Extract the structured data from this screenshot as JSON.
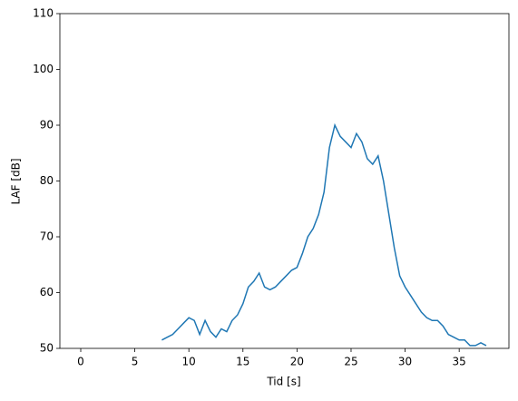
{
  "chart_data": {
    "type": "line",
    "x_label": "Tid [s]",
    "y_label": "LAF [dB]",
    "x": [
      7.5,
      8,
      8.5,
      9,
      9.5,
      10,
      10.5,
      11,
      11.5,
      12,
      12.5,
      13,
      13.5,
      14,
      14.5,
      15,
      15.5,
      16,
      16.5,
      17,
      17.5,
      18,
      18.5,
      19,
      19.5,
      20,
      20.5,
      21,
      21.5,
      22,
      22.5,
      23,
      23.5,
      24,
      24.5,
      25,
      25.5,
      26,
      26.5,
      27,
      27.5,
      28,
      28.5,
      29,
      29.5,
      30,
      30.5,
      31,
      31.5,
      32,
      32.5,
      33,
      33.5,
      34,
      34.5,
      35,
      35.5,
      36,
      36.5,
      37,
      37.5
    ],
    "series": [
      {
        "color": "#1f77b4",
        "values": [
          51.5,
          52,
          52.5,
          53.5,
          54.5,
          55.5,
          55,
          52.5,
          55,
          53,
          52,
          53.5,
          53,
          55,
          56,
          58,
          61,
          62,
          63.5,
          61,
          60.5,
          61,
          62,
          63,
          64,
          64.5,
          67,
          70,
          71.5,
          74,
          78,
          86,
          90,
          88,
          87,
          86,
          88.5,
          87,
          84,
          83,
          84.5,
          80,
          74,
          68,
          63,
          61,
          59.5,
          58,
          56.5,
          55.5,
          55,
          55,
          54,
          52.5,
          52,
          51.5,
          51.5,
          50.5,
          50.5,
          51,
          50.5
        ]
      }
    ],
    "xlim": [
      -1.93,
      39.6
    ],
    "xticks": [
      0,
      5,
      10,
      15,
      20,
      25,
      30,
      35
    ],
    "ylim": [
      50,
      110
    ],
    "yticks": [
      50,
      60,
      70,
      80,
      90,
      100,
      110
    ],
    "grid": false
  }
}
